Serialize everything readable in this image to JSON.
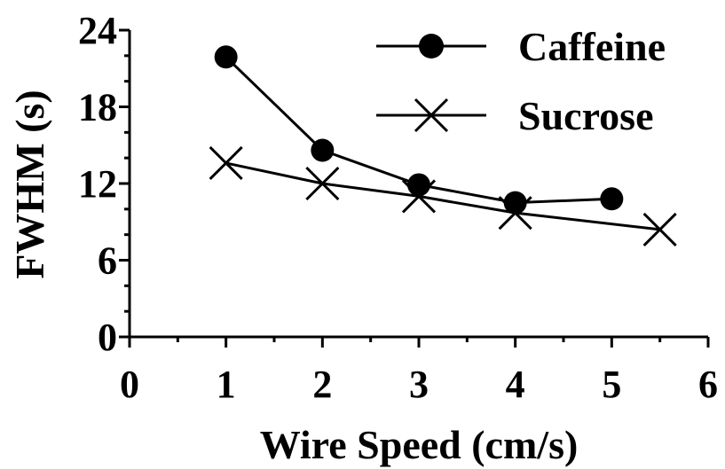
{
  "chart_data": {
    "type": "line",
    "xlabel": "Wire Speed (cm/s)",
    "ylabel": "FWHM (s)",
    "xlim": [
      0,
      6
    ],
    "ylim": [
      0,
      24
    ],
    "x_ticks": [
      "0",
      "1",
      "2",
      "3",
      "4",
      "5",
      "6"
    ],
    "y_ticks": [
      "0",
      "6",
      "12",
      "18",
      "24"
    ],
    "grid": false,
    "legend_position": "top-right",
    "series": [
      {
        "name": "Caffeine",
        "marker": "filled-circle",
        "points": [
          {
            "x": 1,
            "y": 21.9
          },
          {
            "x": 2,
            "y": 14.6
          },
          {
            "x": 3,
            "y": 11.9
          },
          {
            "x": 4,
            "y": 10.5
          },
          {
            "x": 5,
            "y": 10.8
          }
        ]
      },
      {
        "name": "Sucrose",
        "marker": "x",
        "points": [
          {
            "x": 1,
            "y": 13.6
          },
          {
            "x": 2,
            "y": 12.0
          },
          {
            "x": 3,
            "y": 11.0
          },
          {
            "x": 4,
            "y": 9.7
          },
          {
            "x": 5.5,
            "y": 8.4
          }
        ]
      }
    ],
    "colors": {
      "line": "#000000",
      "background": "#ffffff"
    }
  }
}
